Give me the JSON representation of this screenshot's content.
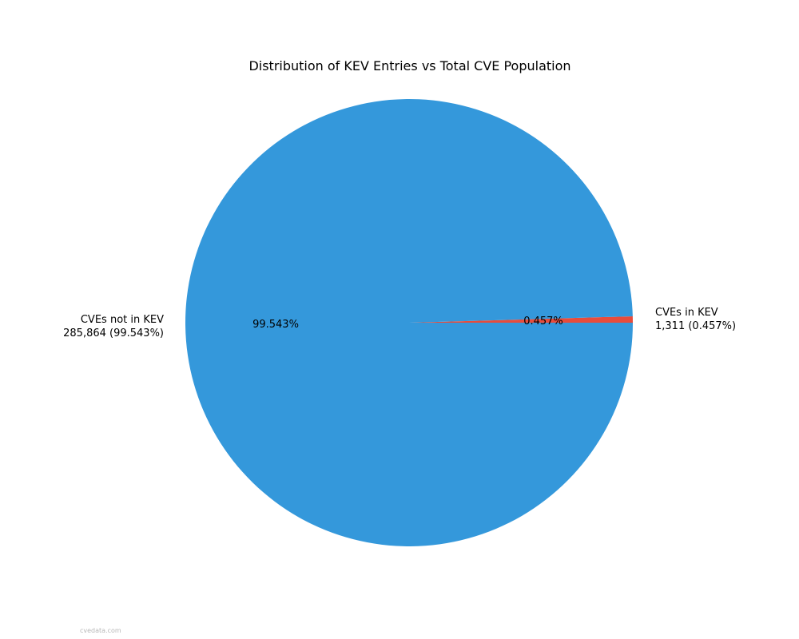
{
  "chart_data": {
    "type": "pie",
    "title": "Distribution of KEV Entries vs Total CVE Population",
    "slices": [
      {
        "label": "CVEs in KEV",
        "value": 1311,
        "value_text": "1,311 (0.457%)",
        "pct_text": "0.457%",
        "color": "#e74c3c"
      },
      {
        "label": "CVEs not in KEV",
        "value": 285864,
        "value_text": "285,864 (99.543%)",
        "pct_text": "99.543%",
        "color": "#3498db"
      }
    ],
    "start_angle_deg": 0,
    "direction": "counterclockwise"
  },
  "watermark": "cvedata.com"
}
